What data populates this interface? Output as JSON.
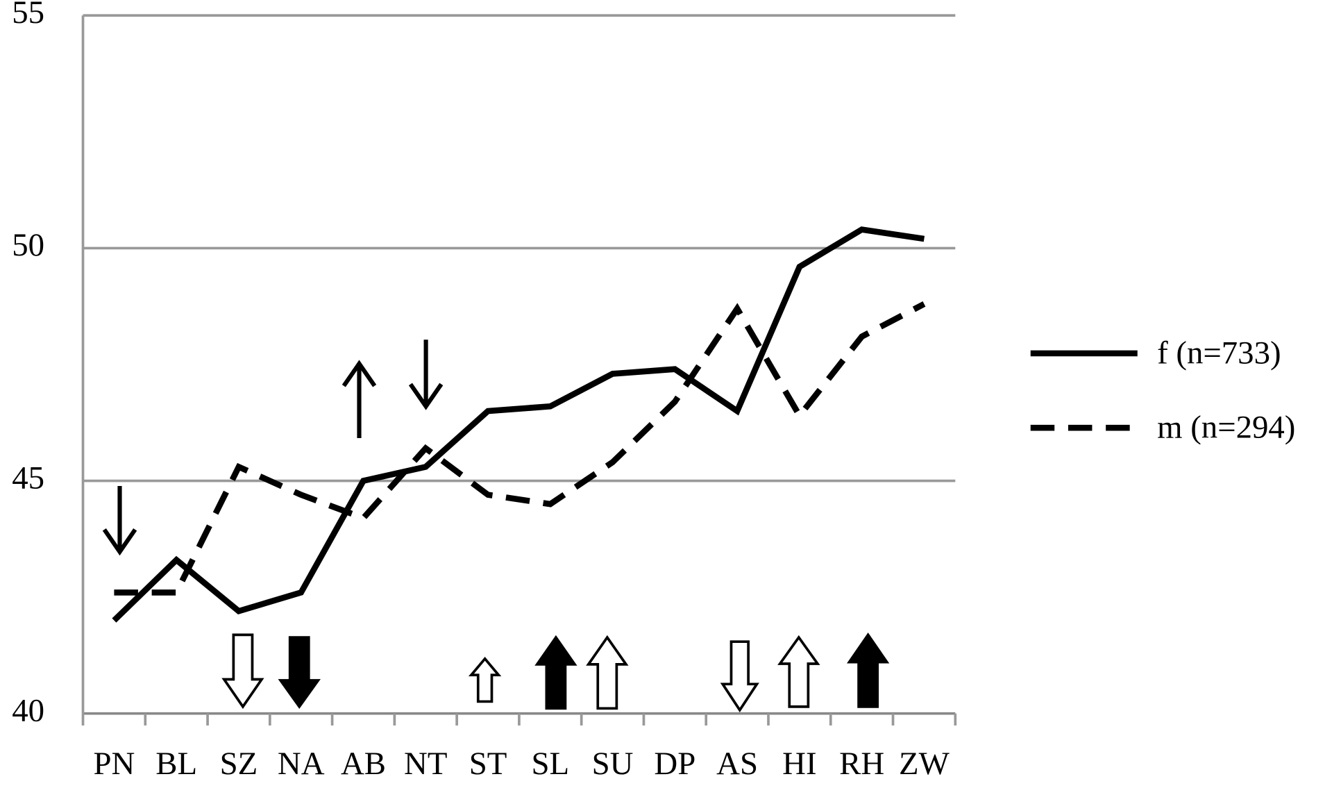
{
  "chart_data": {
    "type": "line",
    "categories": [
      "PN",
      "BL",
      "SZ",
      "NA",
      "AB",
      "NT",
      "ST",
      "SL",
      "SU",
      "DP",
      "AS",
      "HI",
      "RH",
      "ZW"
    ],
    "series": [
      {
        "name": "f (n=733)",
        "color": "#000000",
        "linestyle": "solid",
        "values": [
          42.0,
          43.3,
          42.2,
          42.6,
          45.0,
          45.3,
          46.5,
          46.6,
          47.3,
          47.4,
          46.5,
          49.6,
          50.4,
          50.2
        ]
      },
      {
        "name": "m (n=294)",
        "color": "#000000",
        "linestyle": "dashed",
        "values": [
          42.6,
          42.6,
          45.3,
          44.7,
          44.2,
          45.7,
          44.7,
          44.5,
          45.4,
          46.7,
          48.7,
          46.4,
          48.1,
          48.8
        ]
      }
    ],
    "ylim": [
      40,
      55
    ],
    "yticks": [
      40,
      45,
      50,
      55
    ],
    "grid": true,
    "legend": "right"
  }
}
